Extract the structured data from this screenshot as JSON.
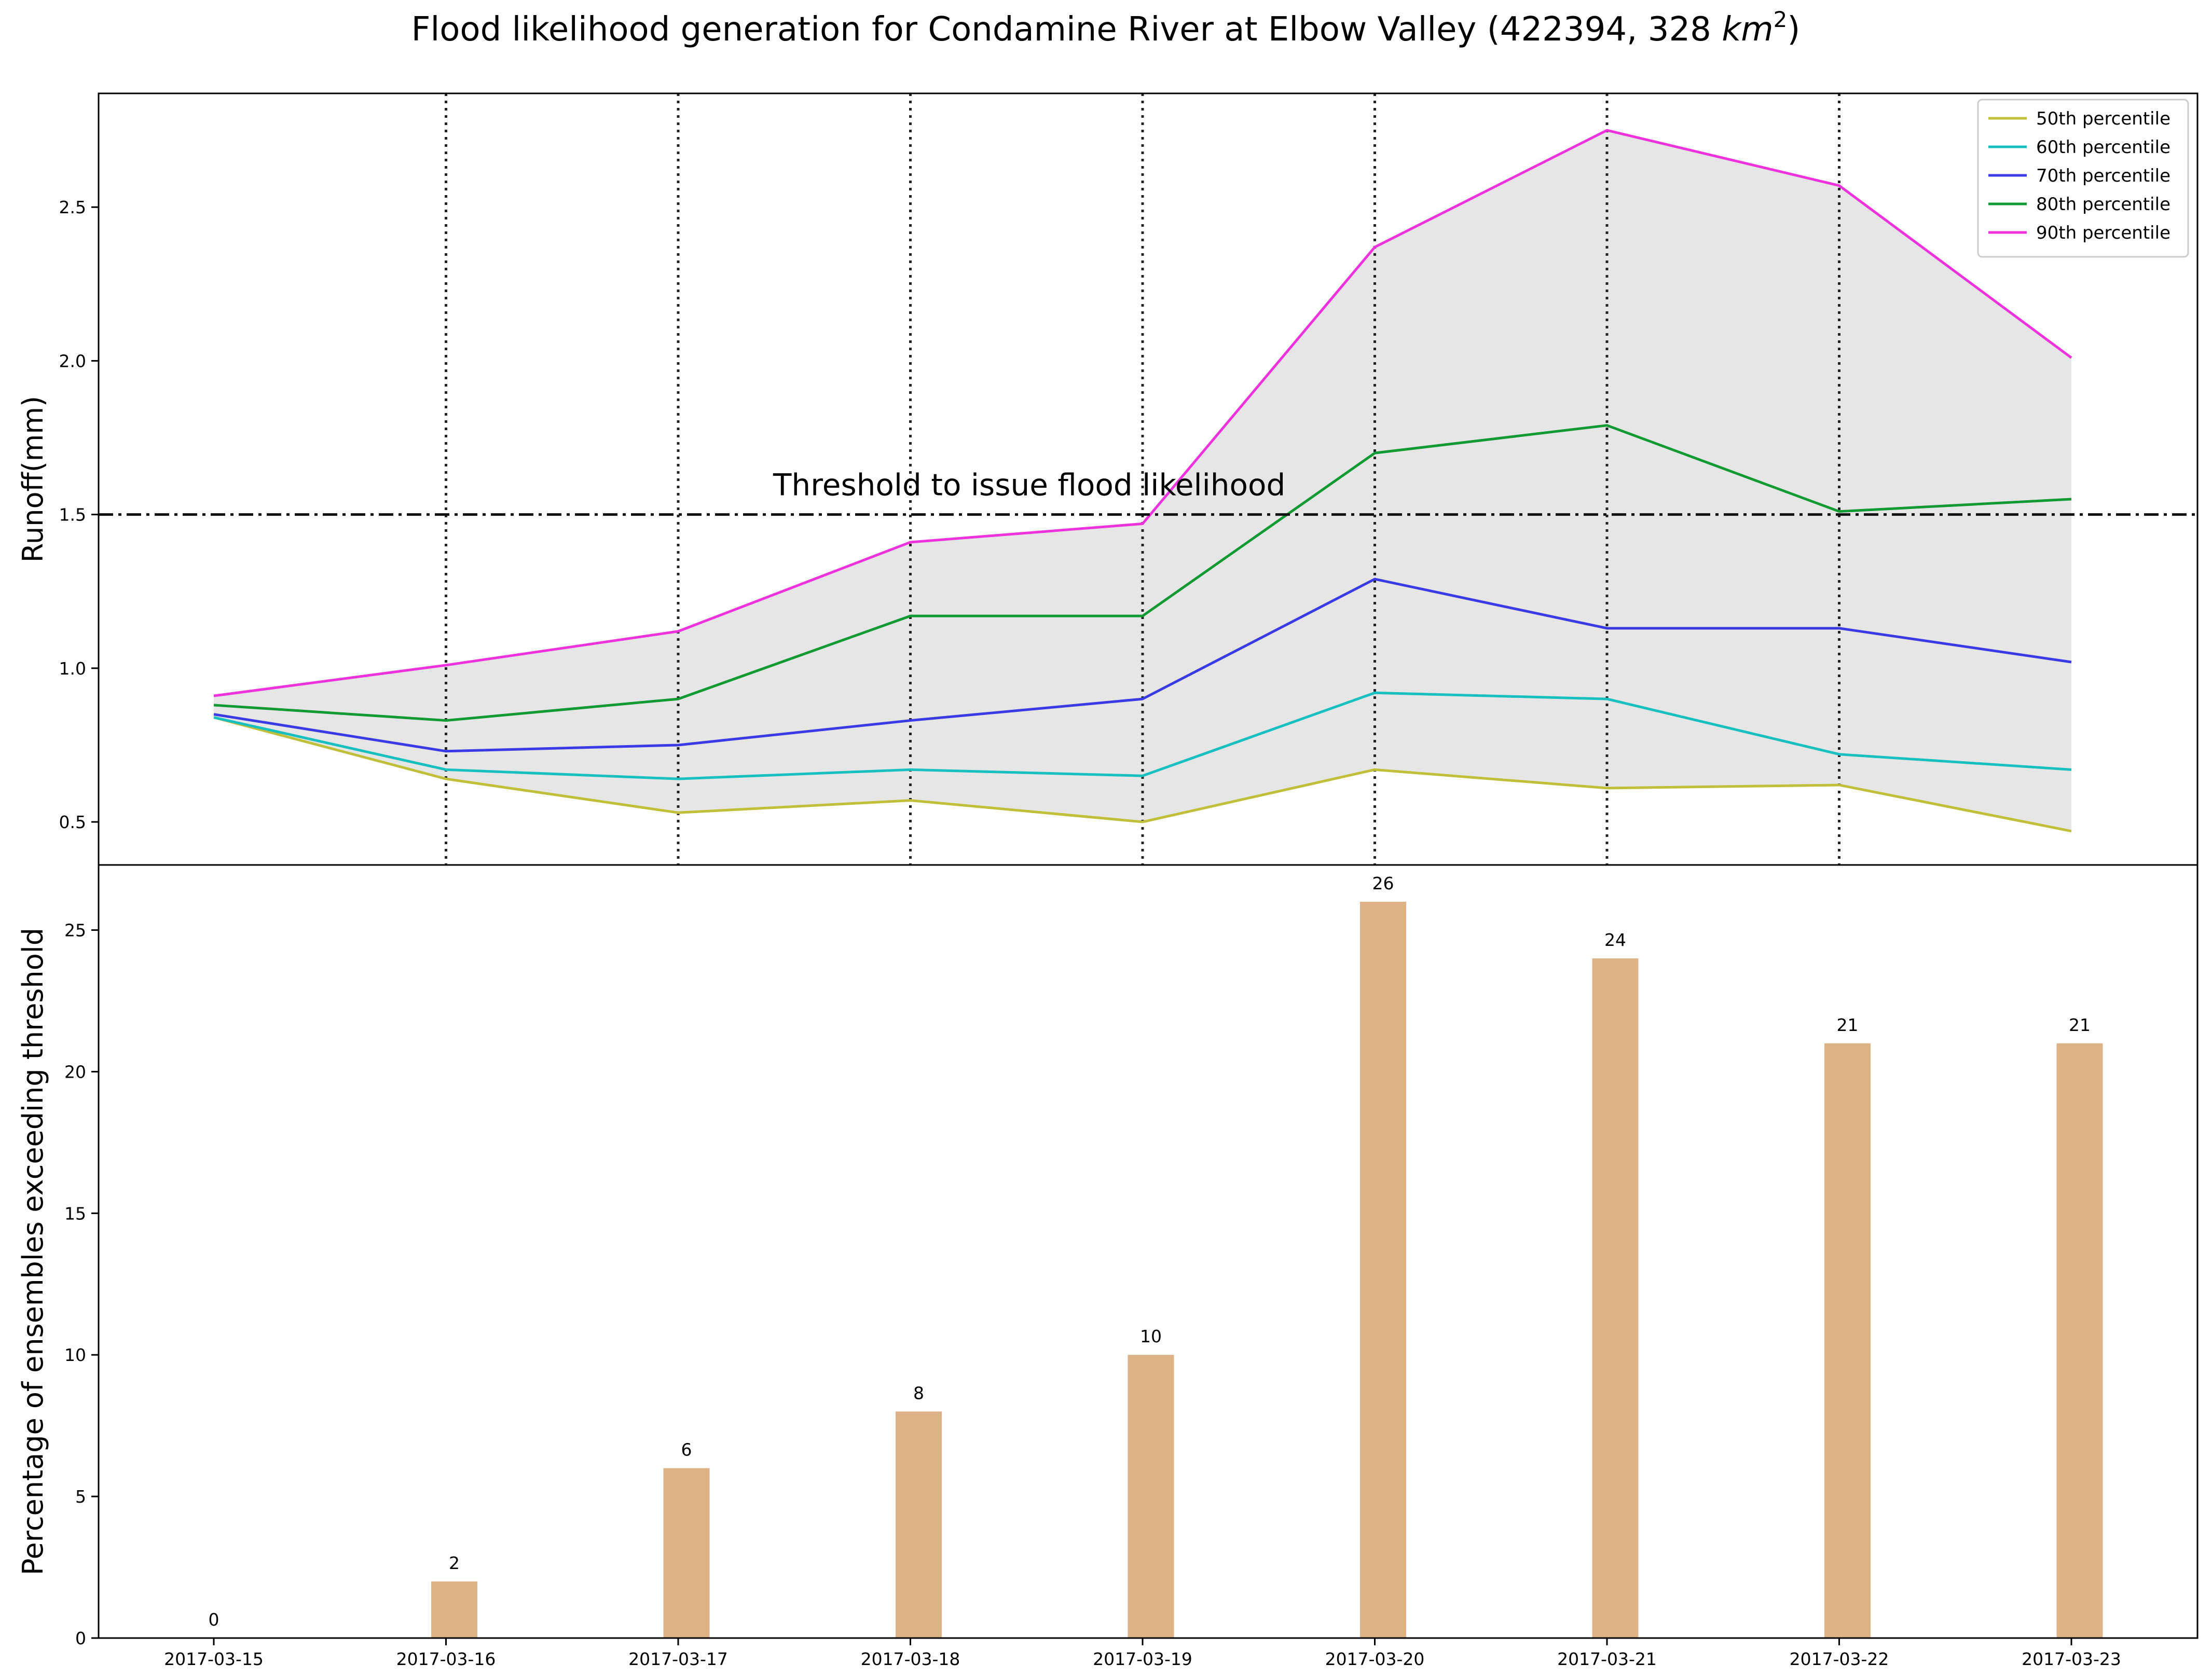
{
  "title": {
    "main": "Flood likelihood generation for Condamine River at Elbow Valley (422394, 328 ",
    "unit_base": "km",
    "unit_exp": "2",
    "close": ")"
  },
  "chart_data": [
    {
      "type": "line",
      "title": "Flood likelihood generation for Condamine River at Elbow Valley (422394, 328 km²)",
      "ylabel": "Runoff(mm)",
      "xlabel": "",
      "ylim": [
        0.36,
        2.87
      ],
      "yticks": [
        "0.5",
        "1.0",
        "1.5",
        "2.0",
        "2.5"
      ],
      "ytick_values": [
        0.5,
        1.0,
        1.5,
        2.0,
        2.5
      ],
      "x": [
        "2017-03-15",
        "2017-03-16",
        "2017-03-17",
        "2017-03-18",
        "2017-03-19",
        "2017-03-20",
        "2017-03-21",
        "2017-03-22",
        "2017-03-23"
      ],
      "series": [
        {
          "name": "50th percentile",
          "color": "#bfbf3a",
          "values": [
            0.84,
            0.64,
            0.53,
            0.57,
            0.5,
            0.67,
            0.61,
            0.62,
            0.47
          ]
        },
        {
          "name": "60th percentile",
          "color": "#17bfbf",
          "values": [
            0.84,
            0.67,
            0.64,
            0.67,
            0.65,
            0.92,
            0.9,
            0.72,
            0.67
          ]
        },
        {
          "name": "70th percentile",
          "color": "#3a3ae6",
          "values": [
            0.85,
            0.73,
            0.75,
            0.83,
            0.9,
            1.29,
            1.13,
            1.13,
            1.02
          ]
        },
        {
          "name": "80th percentile",
          "color": "#119933",
          "values": [
            0.88,
            0.83,
            0.9,
            1.17,
            1.17,
            1.7,
            1.79,
            1.51,
            1.55
          ]
        },
        {
          "name": "90th percentile",
          "color": "#ee33dd",
          "values": [
            0.91,
            1.01,
            1.12,
            1.41,
            1.47,
            2.37,
            2.75,
            2.57,
            2.01
          ]
        }
      ],
      "threshold": {
        "value": 1.5,
        "label": "Threshold to issue flood likelihood"
      },
      "fill_between": {
        "lower": "50th percentile",
        "upper": "90th percentile",
        "color": "#e6e6e6"
      },
      "vlines_at": [
        "2017-03-16",
        "2017-03-17",
        "2017-03-18",
        "2017-03-19",
        "2017-03-20",
        "2017-03-21",
        "2017-03-22"
      ],
      "legend_position": "top-right",
      "grid": false
    },
    {
      "type": "bar",
      "ylabel": "Percentage of ensembles exceeding threshold",
      "xlabel": "",
      "ylim": [
        0,
        27.3
      ],
      "yticks": [
        "0",
        "5",
        "10",
        "15",
        "20",
        "25"
      ],
      "ytick_values": [
        0,
        5,
        10,
        15,
        20,
        25
      ],
      "categories": [
        "2017-03-15",
        "2017-03-16",
        "2017-03-17",
        "2017-03-18",
        "2017-03-19",
        "2017-03-20",
        "2017-03-21",
        "2017-03-22",
        "2017-03-23"
      ],
      "values": [
        0,
        2,
        6,
        8,
        10,
        26,
        24,
        21,
        21
      ],
      "value_labels": [
        "0",
        "2",
        "6",
        "8",
        "10",
        "26",
        "24",
        "21",
        "21"
      ],
      "color": "#deb287",
      "grid": false
    }
  ]
}
